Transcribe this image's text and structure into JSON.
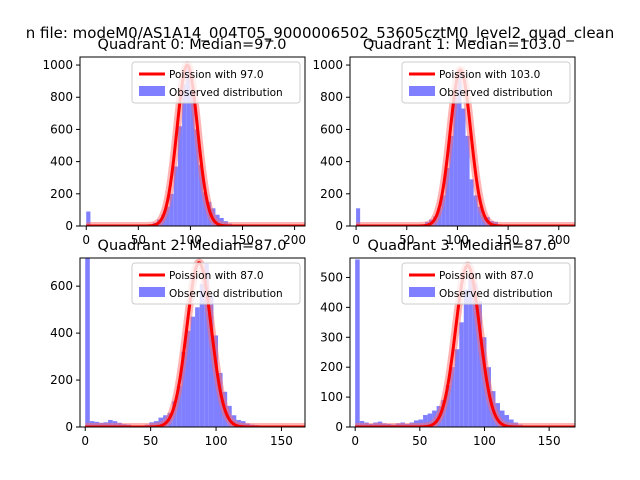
{
  "figure": {
    "suptitle": "n file: modeM0/AS1A14_004T05_9000006502_53605cztM0_level2_quad_clean"
  },
  "colors": {
    "hist": "#7f7fff",
    "poisson_line": "#ff0000",
    "poisson_glow": "#ff6a6a"
  },
  "chart_data": [
    {
      "type": "bar",
      "title": "Quadrant 0: Median=97.0",
      "median": 97.0,
      "xlim": [
        -6,
        210
      ],
      "ylim": [
        0,
        1050
      ],
      "xticks": [
        0,
        50,
        100,
        150,
        200
      ],
      "yticks": [
        0,
        200,
        400,
        600,
        800,
        1000
      ],
      "bin_width": 4,
      "bins": [
        [
          0,
          90
        ],
        [
          4,
          0
        ],
        [
          8,
          0
        ],
        [
          12,
          0
        ],
        [
          16,
          0
        ],
        [
          20,
          0
        ],
        [
          24,
          0
        ],
        [
          28,
          0
        ],
        [
          32,
          0
        ],
        [
          36,
          0
        ],
        [
          40,
          0
        ],
        [
          44,
          0
        ],
        [
          48,
          2
        ],
        [
          52,
          3
        ],
        [
          56,
          5
        ],
        [
          60,
          10
        ],
        [
          64,
          20
        ],
        [
          68,
          40
        ],
        [
          72,
          70
        ],
        [
          76,
          120
        ],
        [
          80,
          200
        ],
        [
          84,
          370
        ],
        [
          88,
          620
        ],
        [
          92,
          880
        ],
        [
          96,
          1000
        ],
        [
          100,
          840
        ],
        [
          104,
          600
        ],
        [
          108,
          380
        ],
        [
          112,
          210
        ],
        [
          116,
          150
        ],
        [
          120,
          110
        ],
        [
          124,
          70
        ],
        [
          128,
          50
        ],
        [
          132,
          30
        ],
        [
          136,
          15
        ],
        [
          140,
          8
        ],
        [
          144,
          3
        ],
        [
          148,
          2
        ]
      ],
      "series": [
        {
          "name": "Poission with 97.0",
          "mean": 97.0,
          "peak": 1000
        },
        {
          "name": "Observed distribution"
        }
      ]
    },
    {
      "type": "bar",
      "title": "Quadrant 1: Median=103.0",
      "median": 103.0,
      "xlim": [
        -6,
        216
      ],
      "ylim": [
        0,
        1050
      ],
      "xticks": [
        0,
        50,
        100,
        150,
        200
      ],
      "yticks": [
        0,
        200,
        400,
        600,
        800,
        1000
      ],
      "bin_width": 4,
      "bins": [
        [
          0,
          110
        ],
        [
          4,
          0
        ],
        [
          8,
          0
        ],
        [
          12,
          0
        ],
        [
          16,
          0
        ],
        [
          20,
          0
        ],
        [
          24,
          0
        ],
        [
          28,
          0
        ],
        [
          32,
          0
        ],
        [
          36,
          0
        ],
        [
          40,
          0
        ],
        [
          44,
          0
        ],
        [
          48,
          0
        ],
        [
          52,
          0
        ],
        [
          56,
          0
        ],
        [
          60,
          5
        ],
        [
          64,
          10
        ],
        [
          68,
          25
        ],
        [
          72,
          40
        ],
        [
          76,
          60
        ],
        [
          80,
          110
        ],
        [
          84,
          190
        ],
        [
          88,
          360
        ],
        [
          92,
          560
        ],
        [
          96,
          800
        ],
        [
          100,
          970
        ],
        [
          104,
          730
        ],
        [
          108,
          560
        ],
        [
          112,
          290
        ],
        [
          116,
          190
        ],
        [
          120,
          120
        ],
        [
          124,
          70
        ],
        [
          128,
          55
        ],
        [
          132,
          30
        ],
        [
          136,
          25
        ],
        [
          140,
          10
        ],
        [
          144,
          5
        ],
        [
          148,
          2
        ],
        [
          152,
          2
        ]
      ],
      "series": [
        {
          "name": "Poission with 103.0",
          "mean": 103.0,
          "peak": 970
        },
        {
          "name": "Observed distribution"
        }
      ]
    },
    {
      "type": "bar",
      "title": "Quadrant 2: Median=87.0",
      "median": 87.0,
      "xlim": [
        -4,
        168
      ],
      "ylim": [
        0,
        720
      ],
      "xticks": [
        0,
        50,
        100,
        150
      ],
      "yticks": [
        0,
        200,
        400,
        600
      ],
      "bin_width": 3.5,
      "bins": [
        [
          0,
          720
        ],
        [
          3.5,
          25
        ],
        [
          7,
          22
        ],
        [
          10.5,
          18
        ],
        [
          14,
          20
        ],
        [
          17.5,
          30
        ],
        [
          21,
          25
        ],
        [
          24.5,
          18
        ],
        [
          28,
          12
        ],
        [
          31.5,
          10
        ],
        [
          35,
          6
        ],
        [
          38.5,
          5
        ],
        [
          42,
          5
        ],
        [
          45.5,
          10
        ],
        [
          49,
          20
        ],
        [
          52.5,
          25
        ],
        [
          56,
          40
        ],
        [
          59.5,
          50
        ],
        [
          63,
          60
        ],
        [
          66.5,
          110
        ],
        [
          70,
          175
        ],
        [
          73.5,
          320
        ],
        [
          77,
          410
        ],
        [
          80.5,
          470
        ],
        [
          84,
          510
        ],
        [
          87.5,
          610
        ],
        [
          91,
          700
        ],
        [
          94.5,
          560
        ],
        [
          98,
          390
        ],
        [
          101.5,
          230
        ],
        [
          105,
          150
        ],
        [
          108.5,
          90
        ],
        [
          112,
          50
        ],
        [
          115.5,
          30
        ],
        [
          119,
          25
        ],
        [
          122.5,
          15
        ],
        [
          126,
          10
        ],
        [
          129.5,
          8
        ],
        [
          133,
          5
        ],
        [
          136.5,
          3
        ],
        [
          140,
          2
        ],
        [
          143.5,
          1
        ]
      ],
      "series": [
        {
          "name": "Poission with 87.0",
          "mean": 87.0,
          "peak": 700
        },
        {
          "name": "Observed distribution"
        }
      ]
    },
    {
      "type": "bar",
      "title": "Quadrant 3: Median=87.0",
      "median": 87.0,
      "xlim": [
        -4,
        170
      ],
      "ylim": [
        0,
        565
      ],
      "xticks": [
        0,
        50,
        100,
        150
      ],
      "yticks": [
        0,
        100,
        200,
        300,
        400,
        500
      ],
      "bin_width": 3.5,
      "bins": [
        [
          0,
          560
        ],
        [
          3.5,
          20
        ],
        [
          7,
          15
        ],
        [
          10.5,
          10
        ],
        [
          14,
          15
        ],
        [
          17.5,
          18
        ],
        [
          21,
          12
        ],
        [
          24.5,
          10
        ],
        [
          28,
          8
        ],
        [
          31.5,
          12
        ],
        [
          35,
          15
        ],
        [
          38.5,
          10
        ],
        [
          42,
          15
        ],
        [
          45.5,
          22
        ],
        [
          49,
          25
        ],
        [
          52.5,
          40
        ],
        [
          56,
          45
        ],
        [
          59.5,
          55
        ],
        [
          63,
          70
        ],
        [
          66.5,
          90
        ],
        [
          70,
          140
        ],
        [
          73.5,
          200
        ],
        [
          77,
          260
        ],
        [
          80.5,
          350
        ],
        [
          84,
          460
        ],
        [
          87.5,
          510
        ],
        [
          91,
          480
        ],
        [
          94.5,
          420
        ],
        [
          98,
          300
        ],
        [
          101.5,
          200
        ],
        [
          105,
          120
        ],
        [
          108.5,
          80
        ],
        [
          112,
          55
        ],
        [
          115.5,
          40
        ],
        [
          119,
          25
        ],
        [
          122.5,
          15
        ],
        [
          126,
          8
        ],
        [
          129.5,
          4
        ],
        [
          133,
          2
        ]
      ],
      "series": [
        {
          "name": "Poission with 87.0",
          "mean": 87.0,
          "peak": 540
        },
        {
          "name": "Observed distribution"
        }
      ]
    }
  ]
}
